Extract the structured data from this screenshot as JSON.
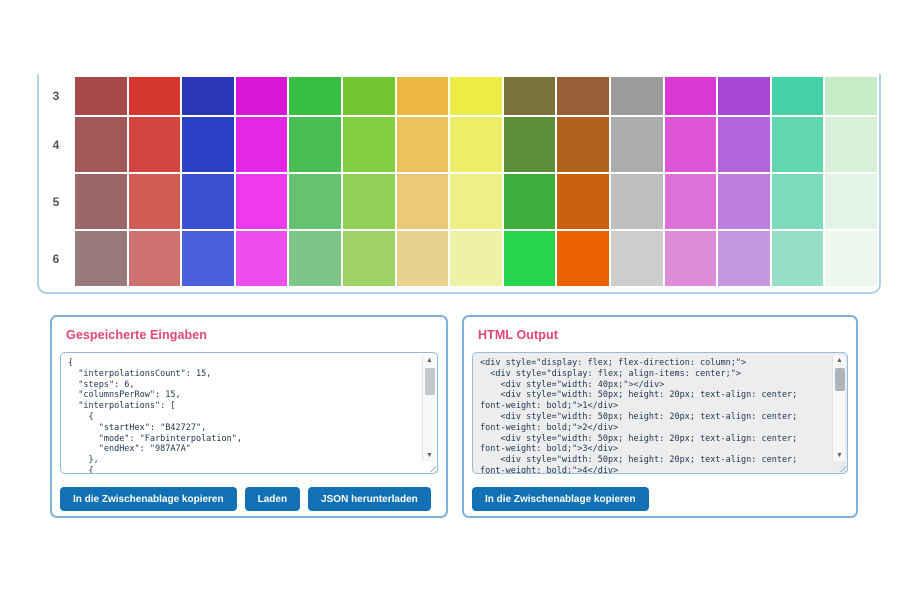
{
  "grid": {
    "columns": 15,
    "row_labels": [
      "3",
      "4",
      "5",
      "6"
    ],
    "rows": [
      {
        "label": "3",
        "colors": [
          "#A94848",
          "#D5362E",
          "#2A38B8",
          "#D816D8",
          "#38BE40",
          "#72C62F",
          "#ECB83F",
          "#ECEC46",
          "#7A7238",
          "#965F36",
          "#9E9C9B",
          "#D939D2",
          "#A847D7",
          "#45D1A5",
          "#C6EBC7"
        ]
      },
      {
        "label": "4",
        "colors": [
          "#A05958",
          "#D4453F",
          "#2B41C5",
          "#E626E6",
          "#49BF53",
          "#82CF41",
          "#EDC15C",
          "#ECEE68",
          "#5B9038",
          "#B0631F",
          "#ACACAA",
          "#DB55D5",
          "#B264DB",
          "#60D6B1",
          "#D8F0DA"
        ]
      },
      {
        "label": "5",
        "colors": [
          "#9B6867",
          "#D15B55",
          "#3A4FD1",
          "#ED3AED",
          "#64C271",
          "#90D054",
          "#EACA78",
          "#EDEF87",
          "#3CAE3B",
          "#C9610E",
          "#BEBEBC",
          "#DC72D7",
          "#BC7EDF",
          "#7CDABD",
          "#E3F3E5"
        ]
      },
      {
        "label": "6",
        "colors": [
          "#987A7A",
          "#CD7271",
          "#4B61DC",
          "#EF4EEF",
          "#7EC588",
          "#9ED168",
          "#E9D28F",
          "#EDF0A7",
          "#25D64A",
          "#E96100",
          "#CDCDCB",
          "#DE8DD9",
          "#C598E2",
          "#98DFC8",
          "#EEF7ED"
        ]
      }
    ]
  },
  "saved_inputs_panel": {
    "title": "Gespeicherte Eingaben",
    "textarea_value": "{\n  \"interpolationsCount\": 15,\n  \"steps\": 6,\n  \"columnsPerRow\": 15,\n  \"interpolations\": [\n    {\n      \"startHex\": \"B42727\",\n      \"mode\": \"Farbinterpolation\",\n      \"endHex\": \"987A7A\"\n    },\n    {",
    "buttons": {
      "copy": "In die Zwischenablage kopieren",
      "load": "Laden",
      "download": "JSON herunterladen"
    }
  },
  "html_output_panel": {
    "title": "HTML Output",
    "textarea_value": "<div style=\"display: flex; flex-direction: column;\">\n  <div style=\"display: flex; align-items: center;\">\n    <div style=\"width: 40px;\"></div>\n    <div style=\"width: 50px; height: 20px; text-align: center; font-weight: bold;\">1</div>\n    <div style=\"width: 50px; height: 20px; text-align: center; font-weight: bold;\">2</div>\n    <div style=\"width: 50px; height: 20px; text-align: center; font-weight: bold;\">3</div>\n    <div style=\"width: 50px; height: 20px; text-align: center; font-weight: bold;\">4</div>",
    "buttons": {
      "copy": "In die Zwischenablage kopieren"
    }
  },
  "scrollbar": {
    "up_arrow": "▲",
    "down_arrow": "▼"
  },
  "ui_colors": {
    "panel_border": "#7fb2d9",
    "grid_border": "#aed3e8",
    "title_pink": "#e2457c",
    "button_blue": "#1270b4",
    "code_text": "#1e3550",
    "output_bg": "#ededee"
  }
}
